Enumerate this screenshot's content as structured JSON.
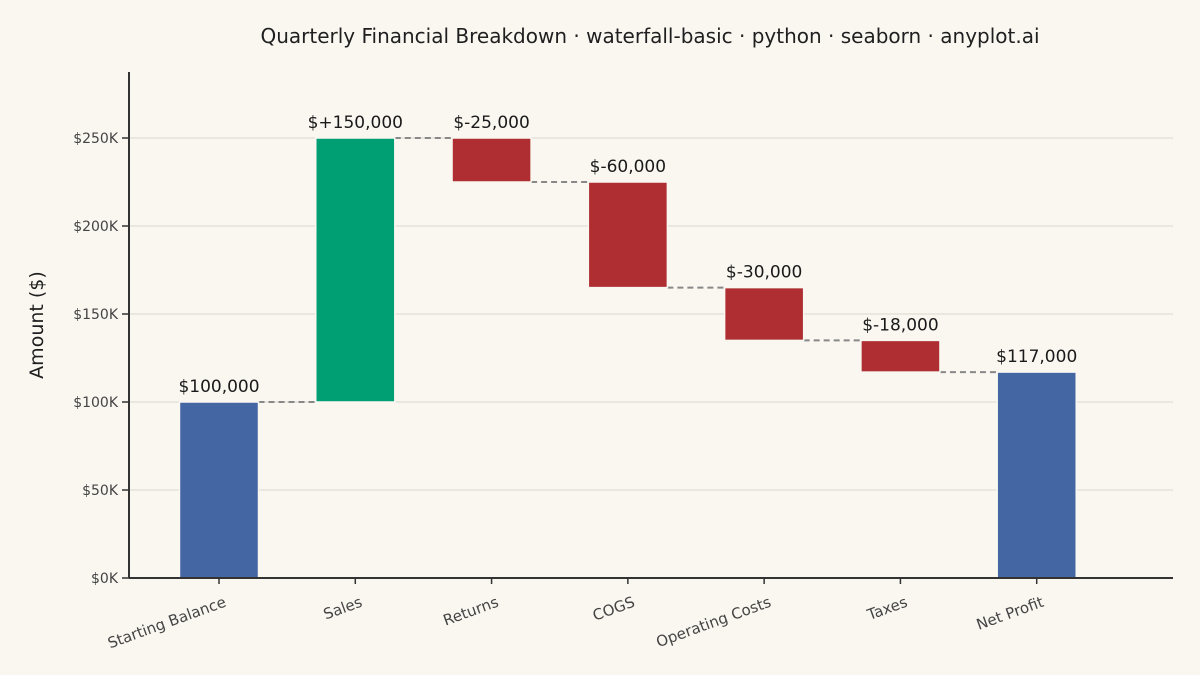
{
  "chart_data": {
    "type": "bar",
    "subtype": "waterfall",
    "title": "Quarterly Financial Breakdown · waterfall-basic · python · seaborn · anyplot.ai",
    "ylabel": "Amount ($)",
    "xlabel": "",
    "categories": [
      "Starting Balance",
      "Sales",
      "Returns",
      "COGS",
      "Operating Costs",
      "Taxes",
      "Net Profit"
    ],
    "values": [
      100000,
      150000,
      -25000,
      -60000,
      -30000,
      -18000,
      117000
    ],
    "kinds": [
      "total",
      "increase",
      "decrease",
      "decrease",
      "decrease",
      "decrease",
      "total"
    ],
    "data_labels": [
      "$100,000",
      "$+150,000",
      "$-25,000",
      "$-60,000",
      "$-30,000",
      "$-18,000",
      "$117,000"
    ],
    "ylim": [
      0,
      287500
    ],
    "yticks": [
      0,
      50000,
      100000,
      150000,
      200000,
      250000
    ],
    "ytick_labels": [
      "$0K",
      "$50K",
      "$100K",
      "$150K",
      "$200K",
      "$250K"
    ],
    "grid": true,
    "connectors": true,
    "colors": {
      "total": "#4467A3",
      "increase": "#009E73",
      "decrease": "#AE2E31",
      "background": "#FAF7F1",
      "grid": "#D9D6CF",
      "connector": "#888888"
    }
  }
}
